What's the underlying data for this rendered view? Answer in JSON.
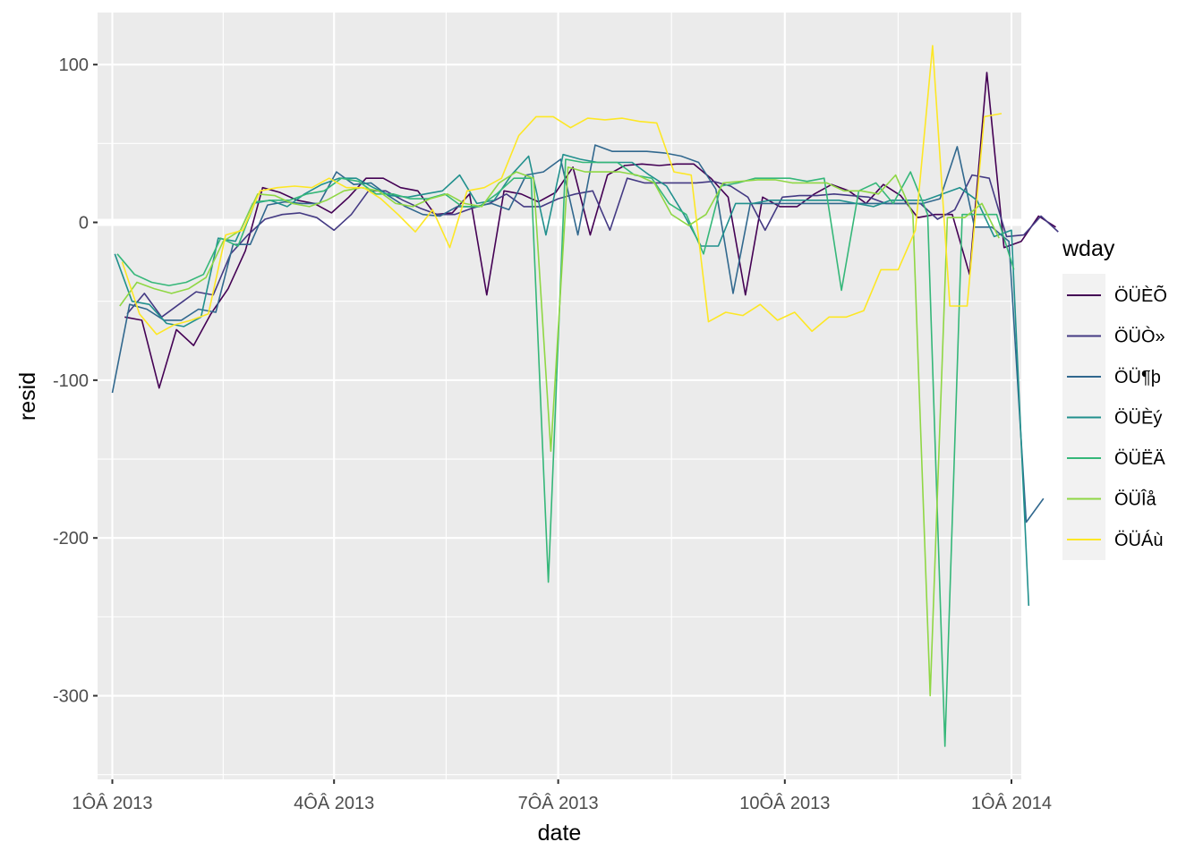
{
  "chart_data": {
    "type": "line",
    "xlabel": "date",
    "ylabel": "resid",
    "xlim": [
      "2012-12-26",
      "2014-01-05"
    ],
    "ylim": [
      -353,
      133
    ],
    "x_ticks": [
      {
        "date": "2013-01-01",
        "label": "1ÔÂ 2013"
      },
      {
        "date": "2013-04-01",
        "label": "4ÔÂ 2013"
      },
      {
        "date": "2013-07-01",
        "label": "7ÔÂ 2013"
      },
      {
        "date": "2013-10-01",
        "label": "10ÔÂ 2013"
      },
      {
        "date": "2014-01-01",
        "label": "1ÔÂ 2014"
      }
    ],
    "y_ticks": [
      -300,
      -200,
      -100,
      0,
      100
    ],
    "grid": true,
    "legend": {
      "title": "wday",
      "position": "right"
    },
    "series": [
      {
        "name": "ÖÜÈÕ",
        "color": "#440154",
        "start": "2013-01-06",
        "values": [
          -60,
          -62,
          -105,
          -68,
          -78,
          -58,
          -42,
          -18,
          22,
          19,
          14,
          12,
          6,
          16,
          28,
          28,
          22,
          20,
          5,
          6,
          18,
          -46,
          20,
          18,
          13,
          19,
          35,
          -8,
          30,
          36,
          37,
          36,
          37,
          37,
          28,
          16,
          -46,
          16,
          10,
          10,
          18,
          24,
          20,
          12,
          24,
          17,
          3,
          5,
          5,
          -33,
          95,
          -16,
          -12,
          4,
          -3
        ]
      },
      {
        "name": "ÖÜÒ»",
        "color": "#443a83",
        "start": "2013-01-07",
        "values": [
          -58,
          -45,
          -60,
          -52,
          -44,
          -46,
          -20,
          -8,
          2,
          5,
          6,
          3,
          -5,
          5,
          20,
          20,
          14,
          9,
          5,
          5,
          9,
          12,
          18,
          10,
          10,
          15,
          18,
          20,
          -5,
          28,
          25,
          25,
          25,
          25,
          26,
          23,
          16,
          -5,
          16,
          17,
          17,
          18,
          17,
          16,
          12,
          12,
          12,
          2,
          8,
          30,
          28,
          -9,
          -8,
          4,
          -6
        ]
      },
      {
        "name": "ÖÜ¶þ",
        "color": "#31688e",
        "start": "2013-01-01",
        "values": [
          -108,
          -52,
          -55,
          -62,
          -62,
          -55,
          -57,
          -14,
          -14,
          11,
          13,
          12,
          12,
          32,
          24,
          25,
          17,
          10,
          5,
          4,
          10,
          10,
          12,
          8,
          30,
          32,
          40,
          -8,
          49,
          45,
          45,
          45,
          44,
          42,
          38,
          21,
          -45,
          12,
          12,
          12,
          12,
          12,
          12,
          12,
          12,
          12,
          12,
          12,
          15,
          48,
          -3,
          -3,
          -12,
          -190,
          -175
        ]
      },
      {
        "name": "ÖÜÈý",
        "color": "#21908d",
        "start": "2013-01-02",
        "values": [
          -20,
          -50,
          -52,
          -64,
          -66,
          -60,
          -10,
          -12,
          12,
          14,
          10,
          18,
          24,
          28,
          28,
          22,
          17,
          16,
          18,
          20,
          30,
          12,
          14,
          30,
          42,
          -8,
          43,
          40,
          38,
          38,
          38,
          30,
          23,
          5,
          -15,
          -15,
          12,
          12,
          14,
          14,
          14,
          14,
          14,
          12,
          10,
          14,
          14,
          14,
          18,
          22,
          14,
          -9,
          -5,
          -243
        ]
      },
      {
        "name": "ÖÜËÄ",
        "color": "#35b779",
        "start": "2013-01-03",
        "values": [
          -20,
          -33,
          -38,
          -40,
          -38,
          -33,
          -10,
          -15,
          13,
          14,
          14,
          18,
          20,
          28,
          26,
          18,
          18,
          15,
          15,
          18,
          10,
          10,
          18,
          28,
          28,
          -228,
          40,
          38,
          38,
          38,
          30,
          28,
          12,
          5,
          -20,
          23,
          25,
          28,
          28,
          28,
          26,
          28,
          -43,
          20,
          25,
          12,
          32,
          5,
          -332,
          5,
          5,
          5,
          -30
        ]
      },
      {
        "name": "ÖÜÎå",
        "color": "#8fd744",
        "start": "2013-01-04",
        "values": [
          -53,
          -38,
          -42,
          -45,
          -42,
          -35,
          -12,
          -5,
          18,
          17,
          12,
          10,
          14,
          20,
          22,
          20,
          12,
          10,
          15,
          18,
          12,
          10,
          25,
          32,
          28,
          -145,
          35,
          32,
          32,
          32,
          30,
          25,
          5,
          -2,
          5,
          25,
          26,
          27,
          27,
          25,
          25,
          25,
          20,
          20,
          18,
          30,
          5,
          -300,
          3,
          3,
          12,
          -10
        ]
      },
      {
        "name": "ÖÜÁù",
        "color": "#fde725",
        "start": "2013-01-05",
        "values": [
          -25,
          -58,
          -71,
          -65,
          -62,
          -58,
          -8,
          -5,
          20,
          22,
          23,
          22,
          28,
          22,
          22,
          15,
          5,
          -6,
          8,
          -16,
          20,
          22,
          28,
          55,
          67,
          67,
          60,
          66,
          65,
          66,
          64,
          63,
          32,
          30,
          -63,
          -57,
          -59,
          -52,
          -62,
          -57,
          -69,
          -60,
          -60,
          -56,
          -30,
          -30,
          -5,
          112,
          -53,
          -53,
          67,
          69
        ]
      }
    ]
  }
}
